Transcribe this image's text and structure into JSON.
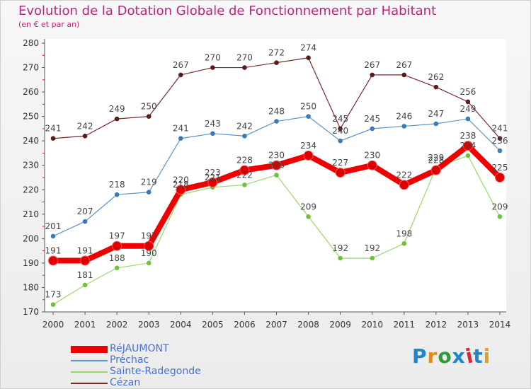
{
  "header": {
    "title": "Evolution de la Dotation Globale de Fonctionnement par Habitant",
    "subtitle": "(en € et par an)"
  },
  "brand": {
    "logo_text": "Proxiti",
    "logo_colors": [
      "#1f87c9",
      "#e08a1e",
      "#2a9a3a",
      "#1f87c9",
      "#d8262a",
      "#1f87c9",
      "#e0a21e"
    ]
  },
  "chart_data": {
    "type": "line",
    "title": "Evolution de la Dotation Globale de Fonctionnement par Habitant",
    "subtitle": "(en € et par an)",
    "xlabel": "",
    "ylabel": "",
    "x": [
      "2000",
      "2001",
      "2002",
      "2003",
      "2004",
      "2005",
      "2006",
      "2007",
      "2008",
      "2009",
      "2010",
      "2011",
      "2012",
      "2013",
      "2014"
    ],
    "ylim": [
      170,
      280
    ],
    "yticks": [
      170,
      180,
      190,
      200,
      210,
      220,
      230,
      240,
      250,
      260,
      270,
      280
    ],
    "grid": false,
    "legend_position": "bottom-left",
    "series": [
      {
        "name": "Cézan",
        "color": "#7a2a2a",
        "marker": "#5a1a1a",
        "values": [
          241,
          242,
          249,
          250,
          267,
          270,
          270,
          272,
          274,
          245,
          267,
          267,
          262,
          256,
          241
        ]
      },
      {
        "name": "Préchac",
        "color": "#5a94c8",
        "marker": "#3a7ab8",
        "values": [
          201,
          207,
          218,
          219,
          241,
          243,
          242,
          248,
          250,
          240,
          245,
          246,
          247,
          249,
          236
        ]
      },
      {
        "name": "Sainte-Radegonde",
        "color": "#9ad86a",
        "marker": "#6fc23a",
        "values": [
          173,
          181,
          188,
          190,
          218,
          221,
          222,
          226,
          209,
          192,
          192,
          198,
          229,
          234,
          209
        ]
      },
      {
        "name": "RéJAUMONT",
        "color": "#ee0000",
        "marker": "#dd0000",
        "values": [
          191,
          191,
          197,
          197,
          220,
          223,
          228,
          230,
          234,
          227,
          230,
          222,
          228,
          238,
          225
        ]
      }
    ],
    "legend_order": [
      "RéJAUMONT",
      "Préchac",
      "Sainte-Radegonde",
      "Cézan"
    ]
  }
}
